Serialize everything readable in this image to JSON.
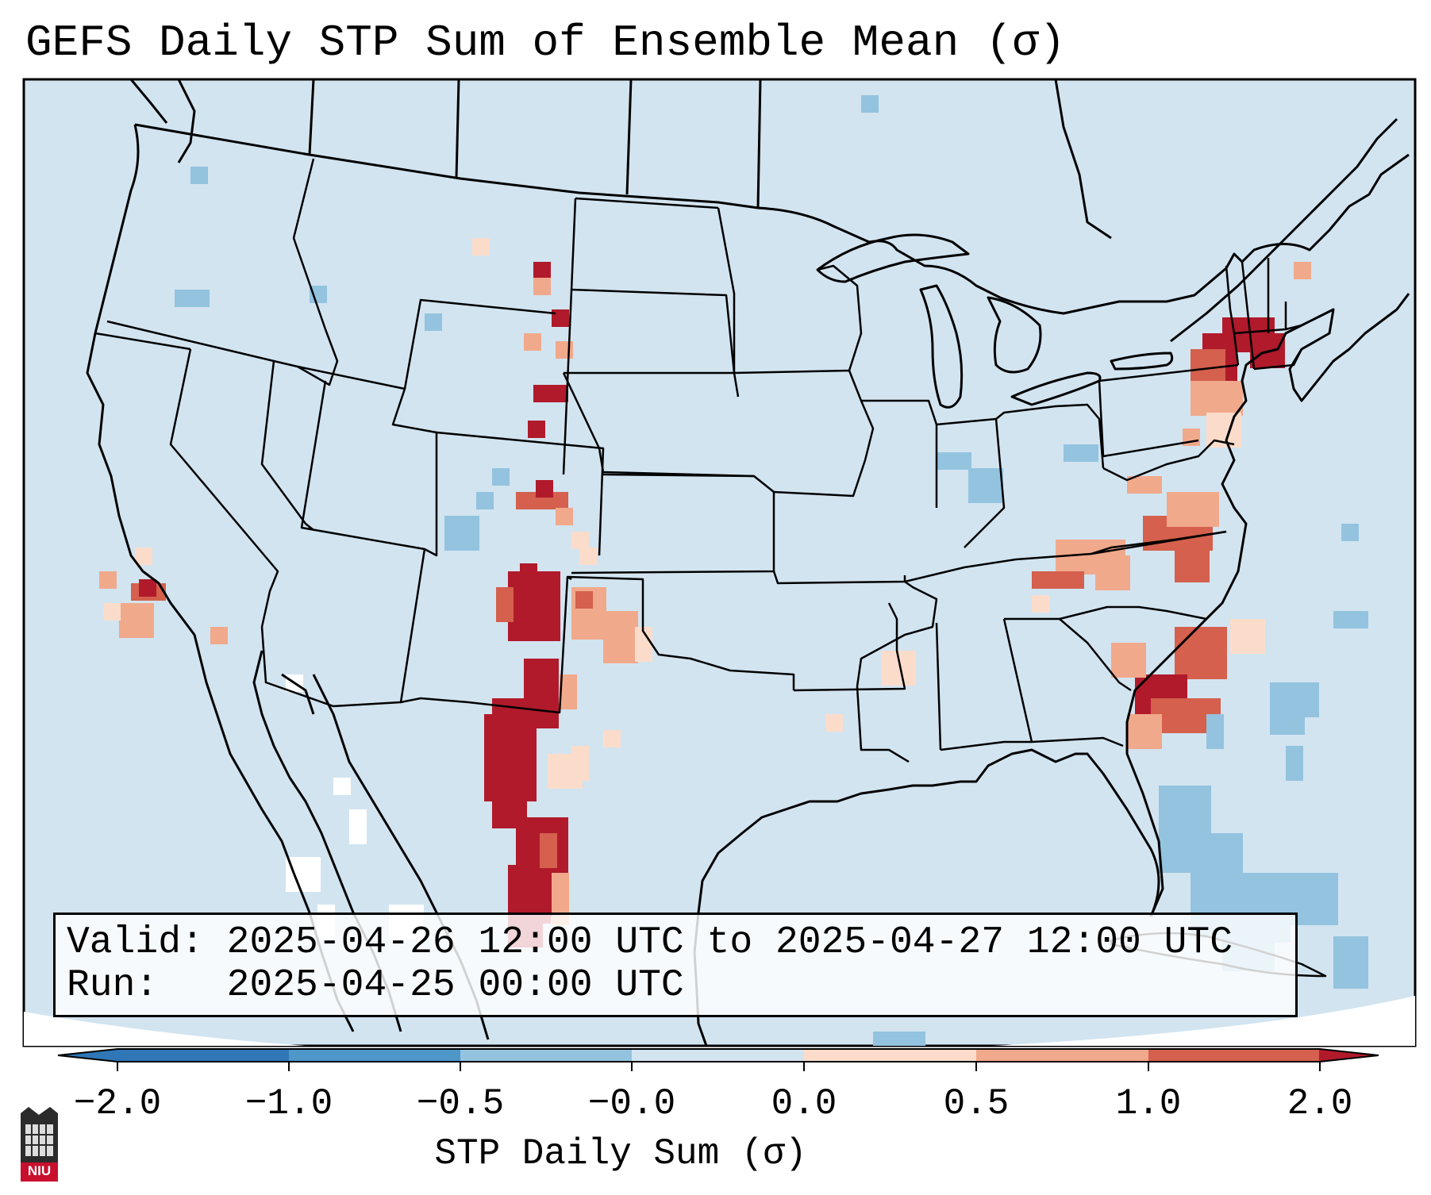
{
  "title": "GEFS Daily STP Sum of Ensemble Mean (σ)",
  "info": {
    "valid": "Valid: 2025-04-26 12:00 UTC to 2025-04-27 12:00 UTC",
    "run": "Run:   2025-04-25 00:00 UTC"
  },
  "colorbar": {
    "label": "STP Daily Sum (σ)",
    "ticks": [
      "−2.0",
      "−1.0",
      "−0.5",
      "−0.0",
      "0.0",
      "0.5",
      "1.0",
      "2.0"
    ],
    "colors": [
      "#2f77b6",
      "#4d97c9",
      "#93c3df",
      "#d2e4f0",
      "#fbdccb",
      "#f1a98b",
      "#d4604d",
      "#b01a2b"
    ]
  },
  "logo": {
    "text": "NIU"
  },
  "colors": {
    "background_field": "#d2e4f0",
    "outline": "#000000"
  },
  "legend_field_meaning": "sigma anomaly of daily STP sum"
}
